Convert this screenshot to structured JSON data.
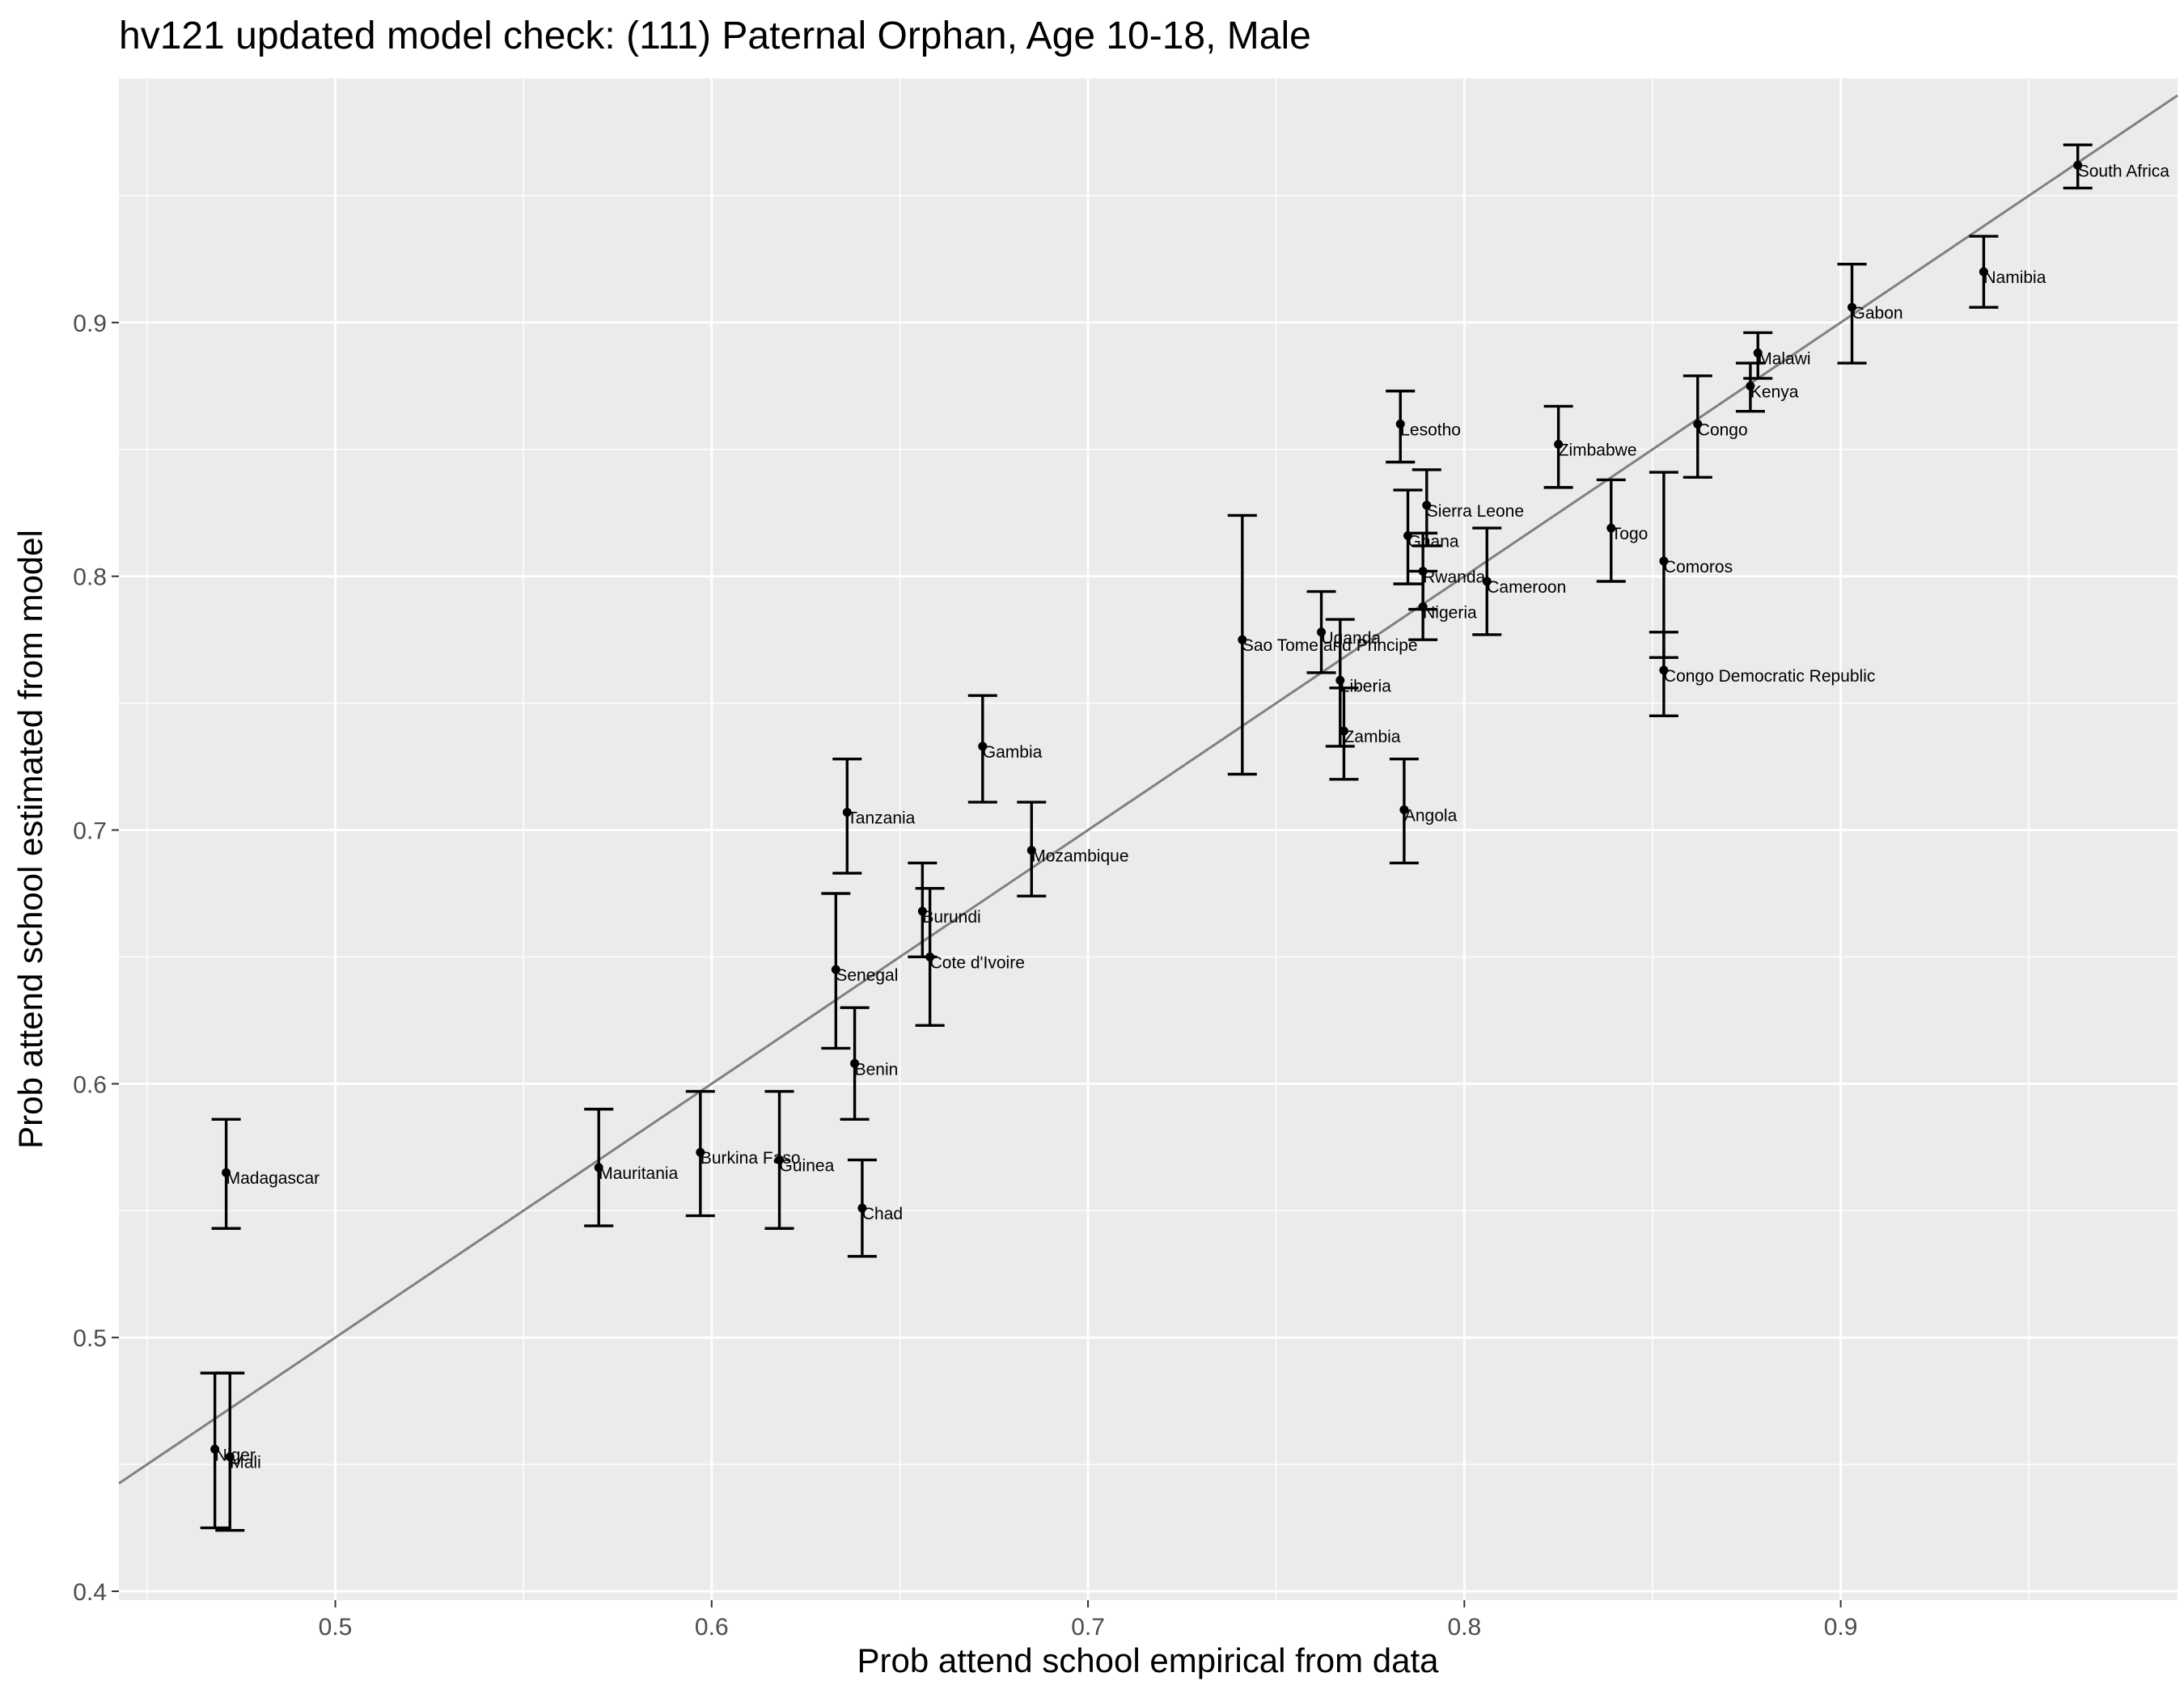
{
  "chart_data": {
    "type": "scatter",
    "title": "hv121 updated model check: (111) Paternal Orphan, Age 10-18, Male",
    "xlabel": "Prob attend school empirical from data",
    "ylabel": "Prob attend school estimated from model",
    "xlim": [
      0.4425,
      0.9895
    ],
    "ylim": [
      0.3965,
      0.9962
    ],
    "x_ticks": [
      "0.5",
      "0.6",
      "0.7",
      "0.8",
      "0.9"
    ],
    "y_ticks": [
      "0.4",
      "0.5",
      "0.6",
      "0.7",
      "0.8",
      "0.9"
    ],
    "grid": true,
    "background": "#ebebeb",
    "reference_line": {
      "slope": 1,
      "intercept": 0,
      "color": "#808080"
    },
    "points": [
      {
        "label": "South Africa",
        "x": 0.963,
        "y": 0.962,
        "ymin": 0.953,
        "ymax": 0.97
      },
      {
        "label": "Namibia",
        "x": 0.938,
        "y": 0.92,
        "ymin": 0.906,
        "ymax": 0.934
      },
      {
        "label": "Gabon",
        "x": 0.903,
        "y": 0.906,
        "ymin": 0.884,
        "ymax": 0.923
      },
      {
        "label": "Malawi",
        "x": 0.878,
        "y": 0.888,
        "ymin": 0.878,
        "ymax": 0.896
      },
      {
        "label": "Kenya",
        "x": 0.876,
        "y": 0.875,
        "ymin": 0.865,
        "ymax": 0.884
      },
      {
        "label": "Congo",
        "x": 0.862,
        "y": 0.86,
        "ymin": 0.839,
        "ymax": 0.879
      },
      {
        "label": "Zimbabwe",
        "x": 0.825,
        "y": 0.852,
        "ymin": 0.835,
        "ymax": 0.867
      },
      {
        "label": "Lesotho",
        "x": 0.783,
        "y": 0.86,
        "ymin": 0.845,
        "ymax": 0.873
      },
      {
        "label": "Sierra Leone",
        "x": 0.79,
        "y": 0.828,
        "ymin": 0.812,
        "ymax": 0.842
      },
      {
        "label": "Togo",
        "x": 0.839,
        "y": 0.819,
        "ymin": 0.798,
        "ymax": 0.838
      },
      {
        "label": "Ghana",
        "x": 0.785,
        "y": 0.816,
        "ymin": 0.797,
        "ymax": 0.834
      },
      {
        "label": "Comoros",
        "x": 0.853,
        "y": 0.806,
        "ymin": 0.768,
        "ymax": 0.841
      },
      {
        "label": "Rwanda",
        "x": 0.789,
        "y": 0.802,
        "ymin": 0.787,
        "ymax": 0.817
      },
      {
        "label": "Cameroon",
        "x": 0.806,
        "y": 0.798,
        "ymin": 0.777,
        "ymax": 0.819
      },
      {
        "label": "Nigeria",
        "x": 0.789,
        "y": 0.788,
        "ymin": 0.775,
        "ymax": 0.802
      },
      {
        "label": "Uganda",
        "x": 0.762,
        "y": 0.778,
        "ymin": 0.762,
        "ymax": 0.794
      },
      {
        "label": "Sao Tome and Principe",
        "x": 0.741,
        "y": 0.775,
        "ymin": 0.722,
        "ymax": 0.824
      },
      {
        "label": "Congo Democratic Republic",
        "x": 0.853,
        "y": 0.763,
        "ymin": 0.745,
        "ymax": 0.778
      },
      {
        "label": "Liberia",
        "x": 0.767,
        "y": 0.759,
        "ymin": 0.733,
        "ymax": 0.783
      },
      {
        "label": "Zambia",
        "x": 0.768,
        "y": 0.739,
        "ymin": 0.72,
        "ymax": 0.756
      },
      {
        "label": "Gambia",
        "x": 0.672,
        "y": 0.733,
        "ymin": 0.711,
        "ymax": 0.753
      },
      {
        "label": "Angola",
        "x": 0.784,
        "y": 0.708,
        "ymin": 0.687,
        "ymax": 0.728
      },
      {
        "label": "Tanzania",
        "x": 0.636,
        "y": 0.707,
        "ymin": 0.683,
        "ymax": 0.728
      },
      {
        "label": "Mozambique",
        "x": 0.685,
        "y": 0.692,
        "ymin": 0.674,
        "ymax": 0.711
      },
      {
        "label": "Burundi",
        "x": 0.656,
        "y": 0.668,
        "ymin": 0.65,
        "ymax": 0.687
      },
      {
        "label": "Cote d'Ivoire",
        "x": 0.658,
        "y": 0.65,
        "ymin": 0.623,
        "ymax": 0.677
      },
      {
        "label": "Senegal",
        "x": 0.633,
        "y": 0.645,
        "ymin": 0.614,
        "ymax": 0.675
      },
      {
        "label": "Benin",
        "x": 0.638,
        "y": 0.608,
        "ymin": 0.586,
        "ymax": 0.63
      },
      {
        "label": "Burkina Faso",
        "x": 0.597,
        "y": 0.573,
        "ymin": 0.548,
        "ymax": 0.597
      },
      {
        "label": "Guinea",
        "x": 0.618,
        "y": 0.57,
        "ymin": 0.543,
        "ymax": 0.597
      },
      {
        "label": "Mauritania",
        "x": 0.57,
        "y": 0.567,
        "ymin": 0.544,
        "ymax": 0.59
      },
      {
        "label": "Madagascar",
        "x": 0.471,
        "y": 0.565,
        "ymin": 0.543,
        "ymax": 0.586
      },
      {
        "label": "Chad",
        "x": 0.64,
        "y": 0.551,
        "ymin": 0.532,
        "ymax": 0.57
      },
      {
        "label": "Niger",
        "x": 0.468,
        "y": 0.456,
        "ymin": 0.425,
        "ymax": 0.486
      },
      {
        "label": "Mali",
        "x": 0.472,
        "y": 0.453,
        "ymin": 0.424,
        "ymax": 0.486
      }
    ]
  }
}
